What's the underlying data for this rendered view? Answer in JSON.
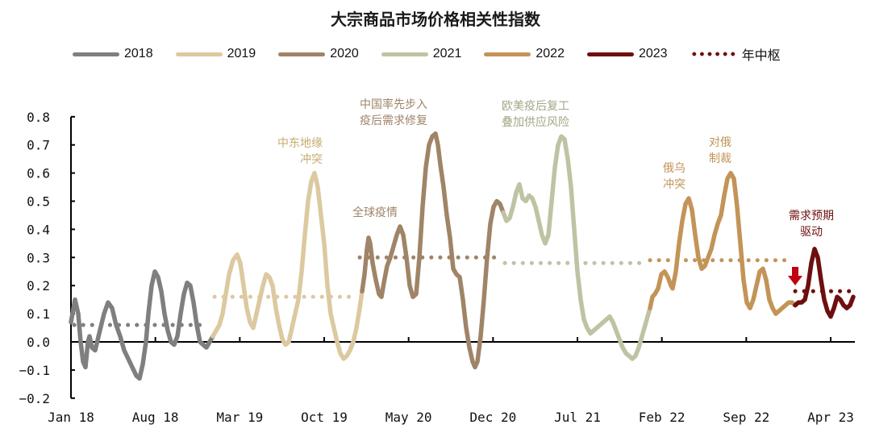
{
  "chart_data": {
    "type": "line",
    "title": "大宗商品市场价格相关性指数",
    "xlabel": "",
    "ylabel": "",
    "ylim": [
      -0.2,
      0.8
    ],
    "yticks": [
      "0.8",
      "0.7",
      "0.6",
      "0.5",
      "0.4",
      "0.3",
      "0.2",
      "0.1",
      "0.0",
      "-0.1",
      "-0.2"
    ],
    "xticks": [
      "Jan 18",
      "Aug 18",
      "Mar 19",
      "Oct 19",
      "May 20",
      "Dec 20",
      "Jul 21",
      "Feb 22",
      "Sep 22",
      "Apr 23"
    ],
    "grid": false,
    "legend_position": "top",
    "legend": [
      {
        "name": "2018",
        "color": "#7f7f7f",
        "style": "solid"
      },
      {
        "name": "2019",
        "color": "#dcc9a0",
        "style": "solid"
      },
      {
        "name": "2020",
        "color": "#a08468",
        "style": "solid"
      },
      {
        "name": "2021",
        "color": "#bfc3a3",
        "style": "solid"
      },
      {
        "name": "2022",
        "color": "#c39458",
        "style": "solid"
      },
      {
        "name": "2023",
        "color": "#6e0f0f",
        "style": "solid"
      },
      {
        "name": "年中枢",
        "color": "#6e0f0f",
        "style": "dotted"
      }
    ],
    "series": [
      {
        "name": "2018",
        "color": "#7f7f7f",
        "points": [
          [
            88,
            0.07
          ],
          [
            93,
            0.15
          ],
          [
            97,
            0.1
          ],
          [
            100,
            0.0
          ],
          [
            103,
            -0.07
          ],
          [
            106,
            -0.09
          ],
          [
            109,
            0.0
          ],
          [
            111,
            0.02
          ],
          [
            114,
            -0.02
          ],
          [
            118,
            -0.03
          ],
          [
            123,
            0.03
          ],
          [
            129,
            0.1
          ],
          [
            134,
            0.14
          ],
          [
            139,
            0.12
          ],
          [
            144,
            0.06
          ],
          [
            149,
            0.02
          ],
          [
            154,
            -0.03
          ],
          [
            159,
            -0.06
          ],
          [
            164,
            -0.09
          ],
          [
            169,
            -0.12
          ],
          [
            173,
            -0.13
          ],
          [
            177,
            -0.08
          ],
          [
            181,
            0.0
          ],
          [
            184,
            0.1
          ],
          [
            188,
            0.2
          ],
          [
            192,
            0.25
          ],
          [
            196,
            0.23
          ],
          [
            200,
            0.18
          ],
          [
            204,
            0.1
          ],
          [
            208,
            0.04
          ],
          [
            212,
            0.0
          ],
          [
            216,
            -0.01
          ],
          [
            220,
            0.02
          ],
          [
            224,
            0.1
          ],
          [
            228,
            0.17
          ],
          [
            232,
            0.21
          ],
          [
            236,
            0.2
          ],
          [
            240,
            0.14
          ],
          [
            244,
            0.06
          ],
          [
            248,
            0.0
          ],
          [
            252,
            -0.01
          ],
          [
            256,
            -0.02
          ],
          [
            260,
            0.0
          ],
          [
            264,
            0.02
          ]
        ]
      },
      {
        "name": "2019",
        "color": "#dcc9a0",
        "points": [
          [
            264,
            0.02
          ],
          [
            268,
            0.04
          ],
          [
            272,
            0.06
          ],
          [
            276,
            0.1
          ],
          [
            280,
            0.17
          ],
          [
            284,
            0.24
          ],
          [
            289,
            0.29
          ],
          [
            294,
            0.31
          ],
          [
            298,
            0.28
          ],
          [
            302,
            0.2
          ],
          [
            306,
            0.12
          ],
          [
            310,
            0.07
          ],
          [
            314,
            0.05
          ],
          [
            318,
            0.1
          ],
          [
            322,
            0.15
          ],
          [
            326,
            0.2
          ],
          [
            330,
            0.24
          ],
          [
            334,
            0.23
          ],
          [
            338,
            0.2
          ],
          [
            342,
            0.12
          ],
          [
            346,
            0.06
          ],
          [
            350,
            0.01
          ],
          [
            354,
            -0.01
          ],
          [
            358,
            0.0
          ],
          [
            362,
            0.05
          ],
          [
            366,
            0.1
          ],
          [
            370,
            0.15
          ],
          [
            374,
            0.25
          ],
          [
            378,
            0.38
          ],
          [
            382,
            0.5
          ],
          [
            386,
            0.57
          ],
          [
            390,
            0.6
          ],
          [
            394,
            0.55
          ],
          [
            398,
            0.45
          ],
          [
            402,
            0.35
          ],
          [
            406,
            0.2
          ],
          [
            410,
            0.1
          ],
          [
            414,
            0.05
          ],
          [
            418,
            0.0
          ],
          [
            422,
            -0.04
          ],
          [
            426,
            -0.06
          ],
          [
            430,
            -0.05
          ],
          [
            434,
            -0.03
          ],
          [
            438,
            0.0
          ],
          [
            442,
            0.05
          ],
          [
            446,
            0.12
          ],
          [
            449,
            0.18
          ]
        ]
      },
      {
        "name": "2020",
        "color": "#a08468",
        "points": [
          [
            449,
            0.18
          ],
          [
            452,
            0.24
          ],
          [
            455,
            0.33
          ],
          [
            457,
            0.37
          ],
          [
            459,
            0.35
          ],
          [
            462,
            0.28
          ],
          [
            466,
            0.22
          ],
          [
            470,
            0.17
          ],
          [
            473,
            0.16
          ],
          [
            476,
            0.21
          ],
          [
            480,
            0.27
          ],
          [
            484,
            0.3
          ],
          [
            488,
            0.34
          ],
          [
            492,
            0.38
          ],
          [
            496,
            0.41
          ],
          [
            500,
            0.38
          ],
          [
            504,
            0.3
          ],
          [
            508,
            0.2
          ],
          [
            512,
            0.16
          ],
          [
            516,
            0.17
          ],
          [
            520,
            0.3
          ],
          [
            524,
            0.48
          ],
          [
            528,
            0.62
          ],
          [
            532,
            0.7
          ],
          [
            536,
            0.73
          ],
          [
            540,
            0.74
          ],
          [
            543,
            0.7
          ],
          [
            546,
            0.63
          ],
          [
            550,
            0.55
          ],
          [
            554,
            0.45
          ],
          [
            558,
            0.37
          ],
          [
            562,
            0.26
          ],
          [
            566,
            0.24
          ],
          [
            570,
            0.23
          ],
          [
            574,
            0.15
          ],
          [
            578,
            0.05
          ],
          [
            582,
            -0.02
          ],
          [
            586,
            -0.07
          ],
          [
            589,
            -0.09
          ],
          [
            592,
            -0.07
          ],
          [
            596,
            0.02
          ],
          [
            600,
            0.15
          ],
          [
            604,
            0.3
          ],
          [
            608,
            0.42
          ],
          [
            612,
            0.48
          ],
          [
            616,
            0.5
          ],
          [
            620,
            0.49
          ],
          [
            624,
            0.46
          ]
        ]
      },
      {
        "name": "2021",
        "color": "#bfc3a3",
        "points": [
          [
            624,
            0.46
          ],
          [
            628,
            0.43
          ],
          [
            632,
            0.44
          ],
          [
            636,
            0.48
          ],
          [
            640,
            0.53
          ],
          [
            644,
            0.56
          ],
          [
            648,
            0.51
          ],
          [
            652,
            0.5
          ],
          [
            656,
            0.52
          ],
          [
            660,
            0.51
          ],
          [
            664,
            0.48
          ],
          [
            668,
            0.43
          ],
          [
            672,
            0.38
          ],
          [
            676,
            0.35
          ],
          [
            680,
            0.38
          ],
          [
            684,
            0.5
          ],
          [
            688,
            0.62
          ],
          [
            692,
            0.7
          ],
          [
            696,
            0.73
          ],
          [
            700,
            0.72
          ],
          [
            704,
            0.65
          ],
          [
            708,
            0.55
          ],
          [
            712,
            0.4
          ],
          [
            716,
            0.25
          ],
          [
            720,
            0.15
          ],
          [
            724,
            0.08
          ],
          [
            728,
            0.05
          ],
          [
            732,
            0.03
          ],
          [
            736,
            0.04
          ],
          [
            740,
            0.05
          ],
          [
            744,
            0.06
          ],
          [
            748,
            0.07
          ],
          [
            752,
            0.08
          ],
          [
            756,
            0.09
          ],
          [
            760,
            0.07
          ],
          [
            764,
            0.04
          ],
          [
            768,
            0.01
          ],
          [
            772,
            -0.02
          ],
          [
            776,
            -0.04
          ],
          [
            780,
            -0.05
          ],
          [
            784,
            -0.06
          ],
          [
            788,
            -0.05
          ],
          [
            792,
            -0.02
          ],
          [
            796,
            0.02
          ],
          [
            800,
            0.06
          ],
          [
            804,
            0.1
          ],
          [
            806,
            0.12
          ]
        ]
      },
      {
        "name": "2022",
        "color": "#c39458",
        "points": [
          [
            806,
            0.12
          ],
          [
            809,
            0.16
          ],
          [
            812,
            0.17
          ],
          [
            816,
            0.19
          ],
          [
            820,
            0.24
          ],
          [
            824,
            0.25
          ],
          [
            828,
            0.23
          ],
          [
            832,
            0.2
          ],
          [
            834,
            0.19
          ],
          [
            838,
            0.25
          ],
          [
            842,
            0.35
          ],
          [
            846,
            0.43
          ],
          [
            850,
            0.49
          ],
          [
            854,
            0.51
          ],
          [
            858,
            0.47
          ],
          [
            862,
            0.38
          ],
          [
            866,
            0.3
          ],
          [
            870,
            0.26
          ],
          [
            874,
            0.27
          ],
          [
            878,
            0.3
          ],
          [
            882,
            0.33
          ],
          [
            886,
            0.38
          ],
          [
            890,
            0.42
          ],
          [
            894,
            0.45
          ],
          [
            898,
            0.52
          ],
          [
            902,
            0.58
          ],
          [
            906,
            0.6
          ],
          [
            910,
            0.58
          ],
          [
            914,
            0.48
          ],
          [
            918,
            0.35
          ],
          [
            922,
            0.22
          ],
          [
            926,
            0.14
          ],
          [
            930,
            0.12
          ],
          [
            934,
            0.15
          ],
          [
            938,
            0.2
          ],
          [
            942,
            0.25
          ],
          [
            946,
            0.26
          ],
          [
            950,
            0.22
          ],
          [
            954,
            0.15
          ],
          [
            958,
            0.12
          ],
          [
            962,
            0.1
          ],
          [
            966,
            0.11
          ],
          [
            970,
            0.12
          ],
          [
            974,
            0.13
          ],
          [
            978,
            0.14
          ],
          [
            982,
            0.14
          ],
          [
            986,
            0.13
          ]
        ]
      },
      {
        "name": "2023",
        "color": "#6e0f0f",
        "points": [
          [
            986,
            0.13
          ],
          [
            990,
            0.14
          ],
          [
            994,
            0.14
          ],
          [
            998,
            0.15
          ],
          [
            1002,
            0.2
          ],
          [
            1006,
            0.28
          ],
          [
            1010,
            0.33
          ],
          [
            1014,
            0.3
          ],
          [
            1018,
            0.22
          ],
          [
            1022,
            0.15
          ],
          [
            1026,
            0.11
          ],
          [
            1030,
            0.09
          ],
          [
            1034,
            0.12
          ],
          [
            1038,
            0.16
          ],
          [
            1042,
            0.15
          ],
          [
            1046,
            0.13
          ],
          [
            1050,
            0.12
          ],
          [
            1054,
            0.13
          ],
          [
            1058,
            0.16
          ]
        ]
      }
    ],
    "central_levels": [
      {
        "year": "2018",
        "value": 0.06,
        "x": [
          92,
          258
        ],
        "color": "#7f7f7f"
      },
      {
        "year": "2019",
        "value": 0.16,
        "x": [
          266,
          440
        ],
        "color": "#dcc9a0"
      },
      {
        "year": "2020",
        "value": 0.3,
        "x": [
          446,
          620
        ],
        "color": "#a08468"
      },
      {
        "year": "2021",
        "value": 0.28,
        "x": [
          626,
          798
        ],
        "color": "#bfc3a3"
      },
      {
        "year": "2022",
        "value": 0.29,
        "x": [
          806,
          978
        ],
        "color": "#c39458"
      },
      {
        "year": "2023",
        "value": 0.18,
        "x": [
          986,
          1058
        ],
        "color": "#6e0f0f"
      }
    ],
    "annotations": [
      {
        "text": "中东地缘\n冲突",
        "color": "#c8aa6e"
      },
      {
        "text": "全球疫情",
        "color": "#a08468"
      },
      {
        "text": "中国率先步入\n疫后需求修复",
        "color": "#a08468"
      },
      {
        "text": "欧美疫后复工\n叠加供应风险",
        "color": "#a3a685"
      },
      {
        "text": "俄乌\n冲突",
        "color": "#c39458"
      },
      {
        "text": "对俄\n制裁",
        "color": "#c39458"
      },
      {
        "text": "需求预期\n驱动",
        "color": "#6e0f0f"
      }
    ]
  },
  "labels": {
    "title": "大宗商品市场价格相关性指数",
    "legend": [
      "2018",
      "2019",
      "2020",
      "2021",
      "2022",
      "2023",
      "年中枢"
    ],
    "annot_1a": "中东地缘",
    "annot_1b": "冲突",
    "annot_2": "全球疫情",
    "annot_3a": "中国率先步入",
    "annot_3b": "疫后需求修复",
    "annot_4a": "欧美疫后复工",
    "annot_4b": "叠加供应风险",
    "annot_5a": "俄乌",
    "annot_5b": "冲突",
    "annot_6a": "对俄",
    "annot_6b": "制裁",
    "annot_7a": "需求预期",
    "annot_7b": "驱动"
  }
}
